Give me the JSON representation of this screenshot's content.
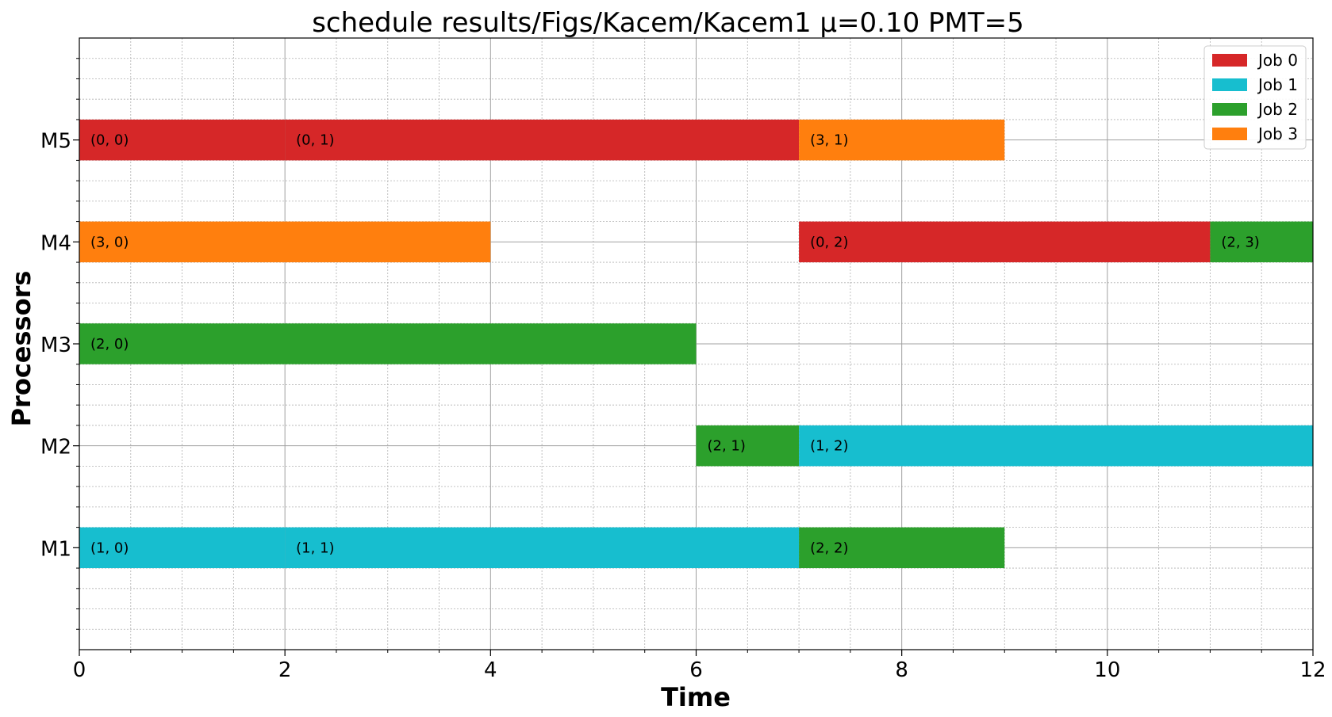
{
  "chart_data": {
    "type": "gantt",
    "title": "schedule results/Figs/Kacem/Kacem1 μ=0.10 PMT=5",
    "xlabel": "Time",
    "ylabel": "Processors",
    "xlim": [
      0,
      12
    ],
    "x_ticks": [
      "0",
      "2",
      "4",
      "6",
      "8",
      "10",
      "12"
    ],
    "processors": [
      "M1",
      "M2",
      "M3",
      "M4",
      "M5"
    ],
    "grid": true,
    "legend_position": "top-right",
    "jobs": [
      {
        "name": "Job 0",
        "color": "#d62728"
      },
      {
        "name": "Job 1",
        "color": "#17becf"
      },
      {
        "name": "Job 2",
        "color": "#2ca02c"
      },
      {
        "name": "Job 3",
        "color": "#ff7f0e"
      }
    ],
    "tasks": [
      {
        "processor": "M5",
        "job": 0,
        "start": 0,
        "end": 2,
        "label": "(0, 0)"
      },
      {
        "processor": "M5",
        "job": 0,
        "start": 2,
        "end": 7,
        "label": "(0, 1)"
      },
      {
        "processor": "M5",
        "job": 3,
        "start": 7,
        "end": 9,
        "label": "(3, 1)"
      },
      {
        "processor": "M4",
        "job": 3,
        "start": 0,
        "end": 4,
        "label": "(3, 0)"
      },
      {
        "processor": "M4",
        "job": 0,
        "start": 7,
        "end": 11,
        "label": "(0, 2)"
      },
      {
        "processor": "M4",
        "job": 2,
        "start": 11,
        "end": 12,
        "label": "(2, 3)"
      },
      {
        "processor": "M3",
        "job": 2,
        "start": 0,
        "end": 6,
        "label": "(2, 0)"
      },
      {
        "processor": "M2",
        "job": 2,
        "start": 6,
        "end": 7,
        "label": "(2, 1)"
      },
      {
        "processor": "M2",
        "job": 1,
        "start": 7,
        "end": 12,
        "label": "(1, 2)"
      },
      {
        "processor": "M1",
        "job": 1,
        "start": 0,
        "end": 2,
        "label": "(1, 0)"
      },
      {
        "processor": "M1",
        "job": 1,
        "start": 2,
        "end": 7,
        "label": "(1, 1)"
      },
      {
        "processor": "M1",
        "job": 2,
        "start": 7,
        "end": 9,
        "label": "(2, 2)"
      }
    ]
  }
}
